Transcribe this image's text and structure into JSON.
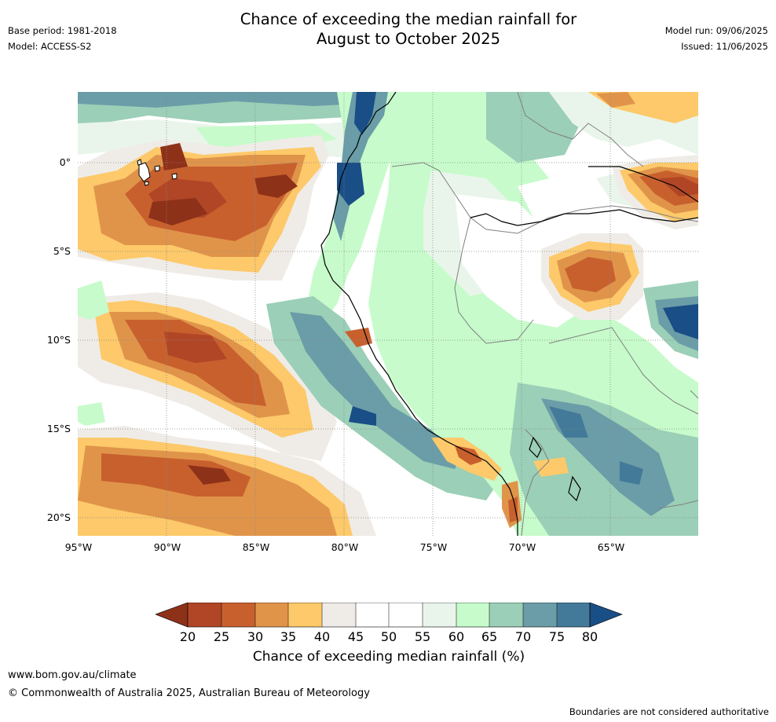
{
  "header": {
    "title_line1": "Chance of exceeding the median rainfall for",
    "title_line2": "August to October 2025",
    "base_period": "Base period: 1981-2018",
    "model": "Model: ACCESS-S2",
    "model_run": "Model run: 09/06/2025",
    "issued": "Issued: 11/06/2025"
  },
  "map": {
    "lat_labels": [
      "0°",
      "5°S",
      "10°S",
      "15°S",
      "20°S"
    ],
    "lon_labels": [
      "95°W",
      "90°W",
      "85°W",
      "80°W",
      "75°W",
      "70°W",
      "65°W"
    ],
    "extent": {
      "west_deg": -95,
      "east_deg": -60,
      "north_deg": 4,
      "south_deg": -21
    },
    "gridlines": "dotted"
  },
  "colorbar": {
    "ticks": [
      "20",
      "25",
      "30",
      "35",
      "40",
      "45",
      "50",
      "55",
      "60",
      "65",
      "70",
      "75",
      "80"
    ],
    "colors": [
      "#8e3119",
      "#b04626",
      "#c8602e",
      "#e0944a",
      "#fdc96a",
      "#efece7",
      "#ffffff",
      "#ffffff",
      "#e9f5ea",
      "#c7fbcb",
      "#9bcfb7",
      "#6a9da7",
      "#437a99",
      "#1a4e86"
    ],
    "label": "Chance of exceeding median rainfall (%)"
  },
  "footer": {
    "website": "www.bom.gov.au/climate",
    "copyright": "© Commonwealth of Australia 2025, Australian Bureau of Meteorology",
    "disclaimer": "Boundaries are not considered authoritative"
  }
}
